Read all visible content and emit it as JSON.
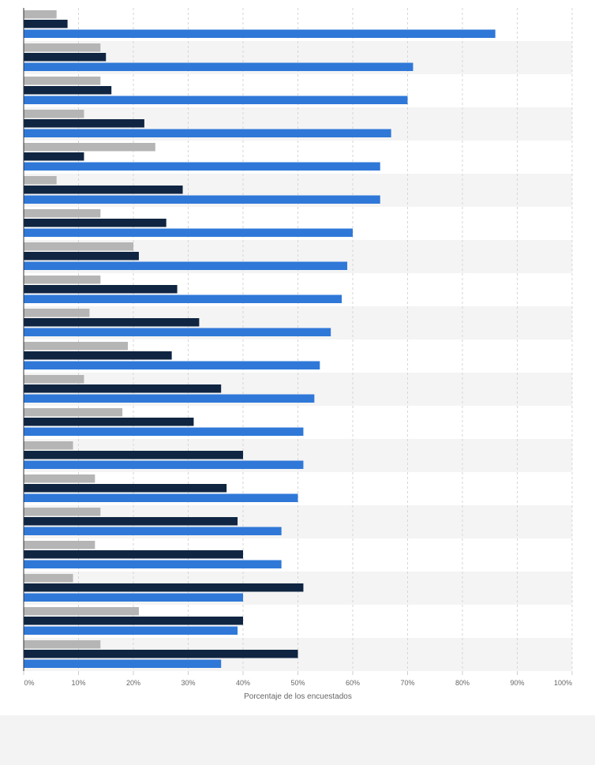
{
  "chart_data": {
    "type": "bar",
    "orientation": "horizontal",
    "xlabel": "Porcentaje de los encuestados",
    "xlim": [
      0,
      100
    ],
    "x_ticks": [
      "0%",
      "10%",
      "20%",
      "30%",
      "40%",
      "50%",
      "60%",
      "70%",
      "80%",
      "90%",
      "100%"
    ],
    "grid": true,
    "categories": [
      "",
      "",
      "",
      "",
      "",
      "",
      "",
      "",
      "",
      "",
      "",
      "",
      "",
      "",
      "",
      "",
      "",
      "",
      "",
      ""
    ],
    "series": [
      {
        "color": "#b5b5b5",
        "values": [
          6,
          14,
          14,
          11,
          24,
          6,
          14,
          20,
          14,
          12,
          19,
          11,
          18,
          9,
          13,
          14,
          13,
          9,
          21,
          14
        ]
      },
      {
        "color": "#0f2542",
        "values": [
          8,
          15,
          16,
          22,
          11,
          29,
          26,
          21,
          28,
          32,
          27,
          36,
          31,
          40,
          37,
          39,
          40,
          51,
          40,
          50
        ]
      },
      {
        "color": "#2f78d8",
        "values": [
          86,
          71,
          70,
          67,
          65,
          65,
          60,
          59,
          58,
          56,
          54,
          53,
          51,
          51,
          50,
          47,
          47,
          40,
          39,
          36
        ]
      }
    ]
  }
}
